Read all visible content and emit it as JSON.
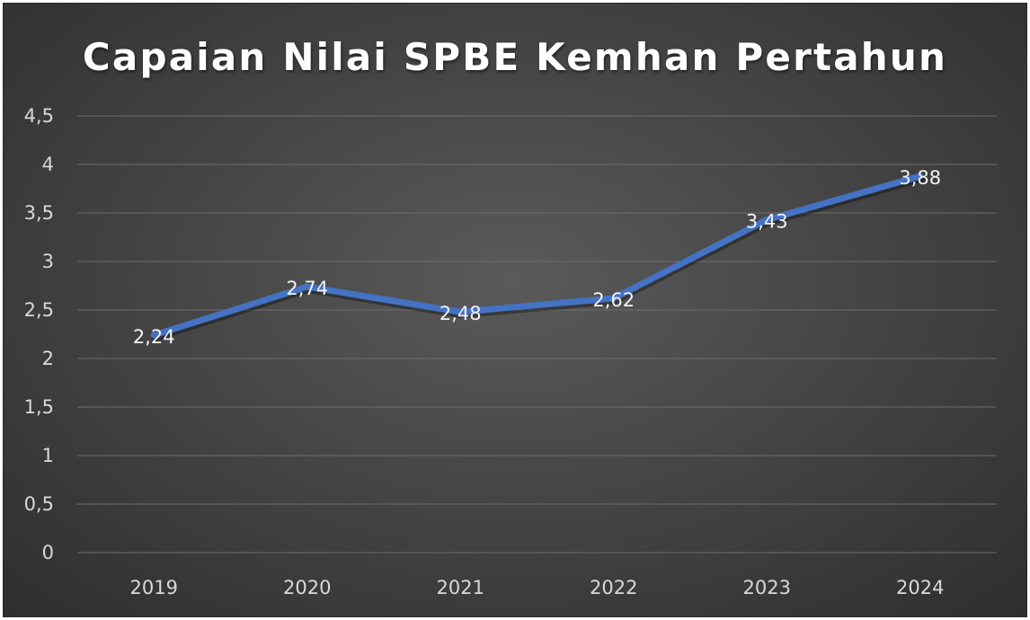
{
  "chart_data": {
    "type": "line",
    "title": "Capaian Nilai SPBE Kemhan Pertahun",
    "xlabel": "",
    "ylabel": "",
    "categories": [
      "2019",
      "2020",
      "2021",
      "2022",
      "2023",
      "2024"
    ],
    "series": [
      {
        "values": [
          2.24,
          2.74,
          2.48,
          2.62,
          3.43,
          3.88
        ],
        "labels": [
          "2,24",
          "2,74",
          "2,48",
          "2,62",
          "3,43",
          "3,88"
        ],
        "color": "#4472C4"
      }
    ],
    "ylim": [
      0,
      4.5
    ],
    "yticks": [
      {
        "value": 0,
        "label": "0"
      },
      {
        "value": 0.5,
        "label": "0,5"
      },
      {
        "value": 1,
        "label": "1"
      },
      {
        "value": 1.5,
        "label": "1,5"
      },
      {
        "value": 2,
        "label": "2"
      },
      {
        "value": 2.5,
        "label": "2,5"
      },
      {
        "value": 3,
        "label": "3"
      },
      {
        "value": 3.5,
        "label": "3,5"
      },
      {
        "value": 4,
        "label": "4"
      },
      {
        "value": 4.5,
        "label": "4,5"
      }
    ],
    "grid": true,
    "legend": "none"
  }
}
